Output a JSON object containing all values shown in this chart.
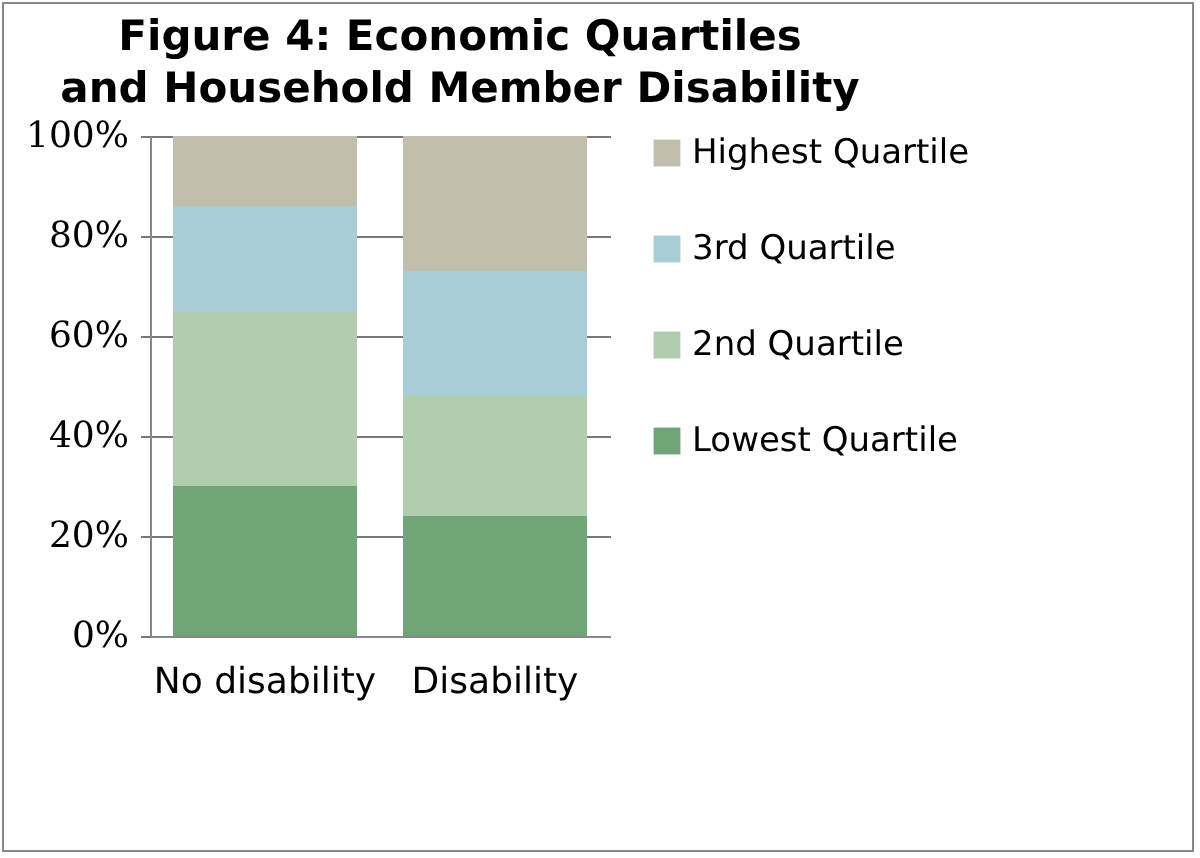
{
  "chart_data": {
    "type": "bar",
    "stacked": true,
    "title": "Figure 4: Economic Quartiles and Household Member Disability",
    "categories": [
      "No disability",
      "Disability"
    ],
    "series": [
      {
        "name": "Lowest Quartile",
        "color": "#71a477",
        "values": [
          30,
          24
        ]
      },
      {
        "name": "2nd Quartile",
        "color": "#b0cdb0",
        "values": [
          35,
          24
        ]
      },
      {
        "name": "3rd Quartile",
        "color": "#a9cdd6",
        "values": [
          21,
          25
        ]
      },
      {
        "name": "Highest Quartile",
        "color": "#c1beae",
        "values": [
          14,
          27
        ]
      }
    ],
    "ylim": [
      0,
      100
    ],
    "yticks": [
      {
        "value": 0,
        "label": "0%"
      },
      {
        "value": 20,
        "label": "20%"
      },
      {
        "value": 40,
        "label": "40%"
      },
      {
        "value": 60,
        "label": "60%"
      },
      {
        "value": 80,
        "label": "80%"
      },
      {
        "value": 100,
        "label": "100%"
      }
    ],
    "grid": "y",
    "legend": "right"
  }
}
